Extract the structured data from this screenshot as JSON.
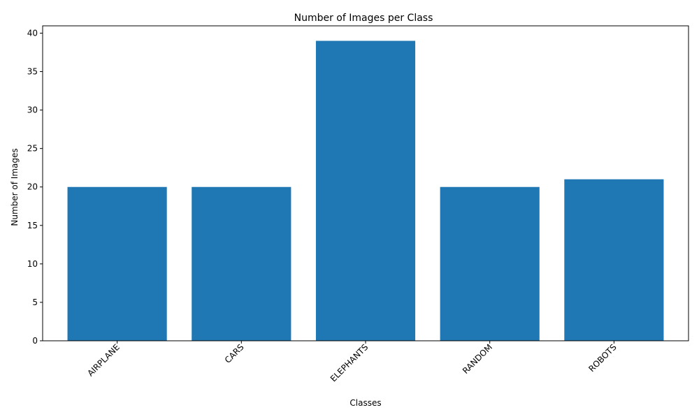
{
  "chart_data": {
    "type": "bar",
    "title": "Number of Images per Class",
    "xlabel": "Classes",
    "ylabel": "Number of Images",
    "categories": [
      "AIRPLANE",
      "CARS",
      "ELEPHANTS",
      "RANDOM",
      "ROBOTS"
    ],
    "values": [
      20,
      20,
      39,
      20,
      21
    ],
    "ylim": [
      0,
      40.95
    ],
    "yticks": [
      0,
      5,
      10,
      15,
      20,
      25,
      30,
      35,
      40
    ],
    "xtick_rotation_deg": 45,
    "grid": false,
    "legend": "none",
    "bar_color": "#1f77b4"
  }
}
